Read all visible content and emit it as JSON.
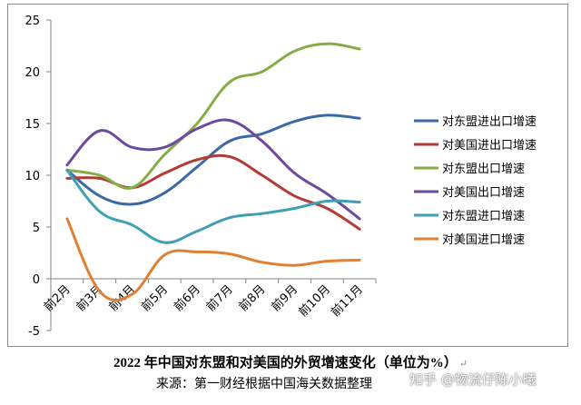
{
  "caption": {
    "title": "2022 年中国对东盟和对美国的外贸增速变化（单位为%）",
    "return_mark": "↵",
    "source": "来源：第一财经根据中国海关数据整理"
  },
  "watermark": "知乎 @物流仔陈小曦",
  "chart_data": {
    "type": "line",
    "categories": [
      "前2月",
      "前3月",
      "前4月",
      "前5月",
      "前6月",
      "前7月",
      "前8月",
      "前9月",
      "前10月",
      "前11月"
    ],
    "ylim": [
      -5,
      25
    ],
    "yticks": [
      -5,
      0,
      5,
      10,
      15,
      20,
      25
    ],
    "grid": false,
    "legend_position": "right",
    "smooth": true,
    "series": [
      {
        "name": "对东盟进出口增速",
        "color": "#3a6aa6",
        "values": [
          10.5,
          8.0,
          7.2,
          8.3,
          10.8,
          13.3,
          14.0,
          15.2,
          15.8,
          15.5
        ]
      },
      {
        "name": "对美国进出口增速",
        "color": "#b43a35",
        "values": [
          9.7,
          9.7,
          8.8,
          10.2,
          11.5,
          11.8,
          10.0,
          8.0,
          6.8,
          4.8
        ]
      },
      {
        "name": "对东盟出口增速",
        "color": "#86ad45",
        "values": [
          10.5,
          10.0,
          8.8,
          12.0,
          15.0,
          19.0,
          20.0,
          22.0,
          22.7,
          22.2
        ]
      },
      {
        "name": "对美国出口增速",
        "color": "#6d4a9b",
        "values": [
          11.0,
          14.3,
          12.7,
          12.7,
          14.5,
          15.3,
          13.3,
          10.2,
          8.2,
          5.8
        ]
      },
      {
        "name": "对东盟进口增速",
        "color": "#3f9fb5",
        "values": [
          10.5,
          6.5,
          5.2,
          3.5,
          4.6,
          5.9,
          6.3,
          6.8,
          7.5,
          7.4
        ]
      },
      {
        "name": "对美国进口增速",
        "color": "#e17f33",
        "values": [
          5.8,
          -1.2,
          -1.5,
          2.3,
          2.6,
          2.4,
          1.6,
          1.3,
          1.7,
          1.8
        ]
      }
    ]
  }
}
